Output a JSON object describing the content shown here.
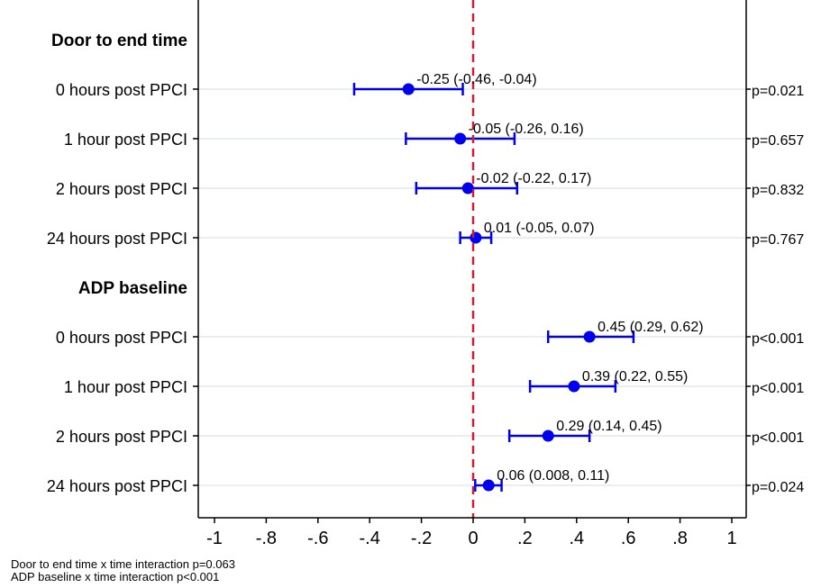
{
  "chart_data": {
    "type": "forest",
    "xlim": [
      -1,
      1
    ],
    "x_ticks": [
      {
        "value": -1,
        "label": "-1"
      },
      {
        "value": -0.8,
        "label": "-.8"
      },
      {
        "value": -0.6,
        "label": "-.6"
      },
      {
        "value": -0.4,
        "label": "-.4"
      },
      {
        "value": -0.2,
        "label": "-.2"
      },
      {
        "value": 0,
        "label": "0"
      },
      {
        "value": 0.2,
        "label": ".2"
      },
      {
        "value": 0.4,
        "label": ".4"
      },
      {
        "value": 0.6,
        "label": ".6"
      },
      {
        "value": 0.8,
        "label": ".8"
      },
      {
        "value": 1,
        "label": "1"
      }
    ],
    "reference_line": 0,
    "grid": "horizontal-light",
    "groups": [
      {
        "heading": "Door to end time",
        "rows": [
          {
            "label": "0 hours post PPCI",
            "estimate": -0.25,
            "ci_low": -0.46,
            "ci_high": -0.04,
            "annotation": "-0.25 (-0.46, -0.04)",
            "p": "p=0.021"
          },
          {
            "label": "1 hour post PPCI",
            "estimate": -0.05,
            "ci_low": -0.26,
            "ci_high": 0.16,
            "annotation": "-0.05 (-0.26, 0.16)",
            "p": "p=0.657"
          },
          {
            "label": "2 hours post PPCI",
            "estimate": -0.02,
            "ci_low": -0.22,
            "ci_high": 0.17,
            "annotation": "-0.02 (-0.22, 0.17)",
            "p": "p=0.832"
          },
          {
            "label": "24 hours post PPCI",
            "estimate": 0.01,
            "ci_low": -0.05,
            "ci_high": 0.07,
            "annotation": "0.01 (-0.05, 0.07)",
            "p": "p=0.767"
          }
        ]
      },
      {
        "heading": "ADP baseline",
        "rows": [
          {
            "label": "0 hours post PPCI",
            "estimate": 0.45,
            "ci_low": 0.29,
            "ci_high": 0.62,
            "annotation": "0.45 (0.29, 0.62)",
            "p": "p<0.001"
          },
          {
            "label": "1 hour post PPCI",
            "estimate": 0.39,
            "ci_low": 0.22,
            "ci_high": 0.55,
            "annotation": "0.39 (0.22, 0.55)",
            "p": "p<0.001"
          },
          {
            "label": "2 hours post PPCI",
            "estimate": 0.29,
            "ci_low": 0.14,
            "ci_high": 0.45,
            "annotation": "0.29 (0.14, 0.45)",
            "p": "p<0.001"
          },
          {
            "label": "24 hours post PPCI",
            "estimate": 0.06,
            "ci_low": 0.008,
            "ci_high": 0.11,
            "annotation": "0.06 (0.008, 0.11)",
            "p": "p=0.024"
          }
        ]
      }
    ],
    "colors": {
      "marker": "#0000ee",
      "reference_line": "#cc1f36",
      "gridline": "#e8eef2"
    }
  },
  "footnotes": [
    "Door to end time x time interaction p=0.063",
    "ADP baseline x time interaction p<0.001"
  ]
}
